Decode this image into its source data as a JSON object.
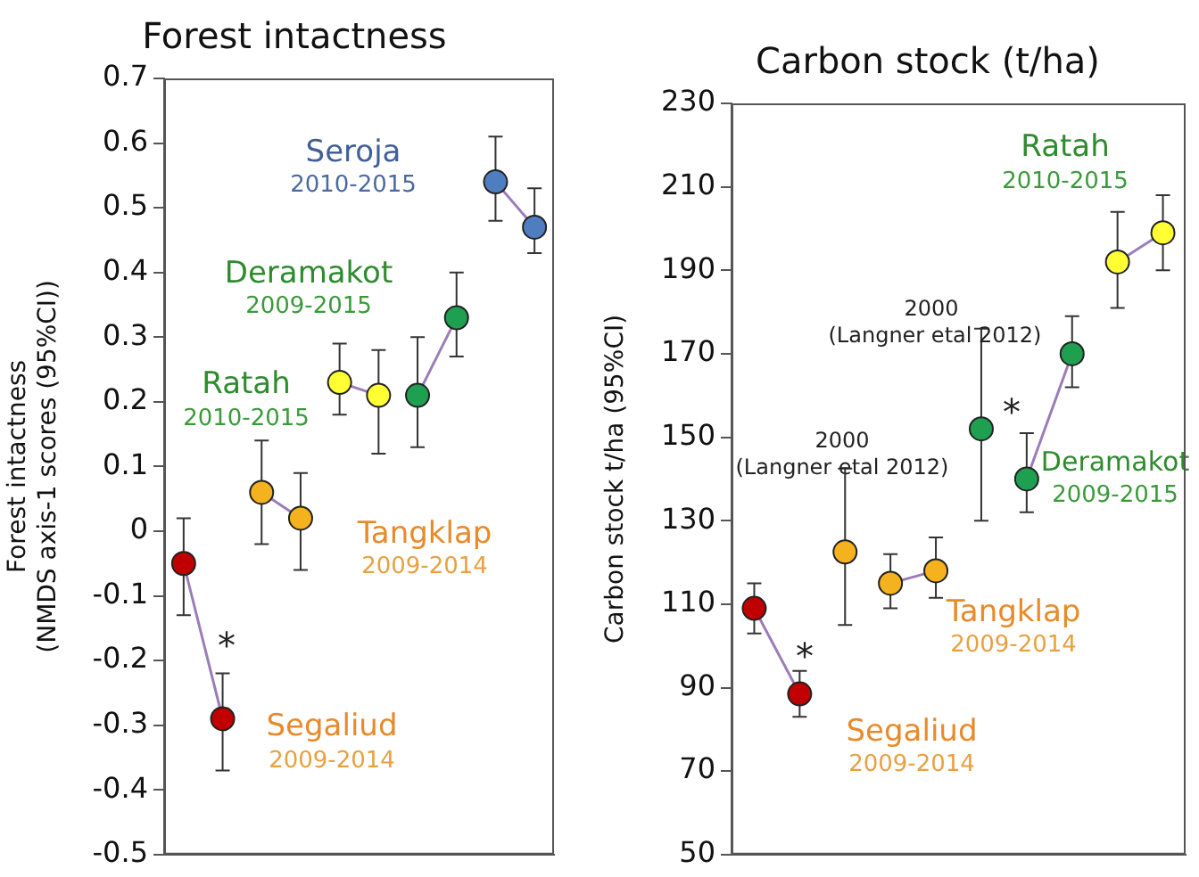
{
  "chart_data": [
    {
      "type": "line",
      "title": "Forest intactness",
      "ylabel": "Forest intactness\n(NMDS axis-1 scores (95%CI))",
      "categories": [
        null,
        null,
        null,
        null,
        null,
        null,
        null,
        null,
        null,
        null
      ],
      "ylim": [
        -0.5,
        0.7
      ],
      "yticks": [
        -0.5,
        -0.4,
        -0.3,
        -0.2,
        -0.1,
        0,
        0.1,
        0.2,
        0.3,
        0.4,
        0.5,
        0.6,
        0.7
      ],
      "grid": false,
      "legend": false,
      "marker": "circle",
      "tick_labels": "y",
      "series": [
        {
          "color": "#9c7cb8",
          "colors": [
            "#c00000",
            "#c00000",
            null,
            null,
            null,
            null,
            null,
            null,
            null,
            null
          ],
          "values": [
            -0.05,
            -0.29,
            null,
            null,
            null,
            null,
            null,
            null,
            null,
            null
          ],
          "errors": [
            [
              -0.13,
              0.02
            ],
            [
              -0.37,
              -0.22
            ],
            null,
            null,
            null,
            null,
            null,
            null,
            null,
            null
          ]
        },
        {
          "color": "#9c7cb8",
          "colors": [
            null,
            null,
            "#f5b21f",
            "#f5b21f",
            null,
            null,
            null,
            null,
            null,
            null
          ],
          "values": [
            null,
            null,
            0.06,
            0.02,
            null,
            null,
            null,
            null,
            null,
            null
          ],
          "errors": [
            null,
            null,
            [
              -0.02,
              0.14
            ],
            [
              -0.06,
              0.09
            ],
            null,
            null,
            null,
            null,
            null,
            null
          ]
        },
        {
          "color": "#9c7cb8",
          "colors": [
            null,
            null,
            null,
            null,
            "#ffff33",
            "#ffff33",
            null,
            null,
            null,
            null
          ],
          "values": [
            null,
            null,
            null,
            null,
            0.23,
            0.21,
            null,
            null,
            null,
            null
          ],
          "errors": [
            null,
            null,
            null,
            null,
            [
              0.18,
              0.29
            ],
            [
              0.12,
              0.28
            ],
            null,
            null,
            null,
            null
          ]
        },
        {
          "color": "#9c7cb8",
          "colors": [
            null,
            null,
            null,
            null,
            null,
            null,
            "#1fa050",
            "#1fa050",
            null,
            null
          ],
          "values": [
            null,
            null,
            null,
            null,
            null,
            null,
            0.21,
            0.33,
            null,
            null
          ],
          "errors": [
            null,
            null,
            null,
            null,
            null,
            null,
            [
              0.13,
              0.3
            ],
            [
              0.27,
              0.4
            ],
            null,
            null
          ]
        },
        {
          "color": "#9c7cb8",
          "colors": [
            null,
            null,
            null,
            null,
            null,
            null,
            null,
            null,
            "#4f7ec0",
            "#4f7ec0"
          ],
          "values": [
            null,
            null,
            null,
            null,
            null,
            null,
            null,
            null,
            0.54,
            0.47
          ],
          "errors": [
            null,
            null,
            null,
            null,
            null,
            null,
            null,
            null,
            [
              0.48,
              0.61
            ],
            [
              0.43,
              0.53
            ]
          ]
        }
      ],
      "annotations": [
        "Seroja",
        "2010-2015",
        "Deramakot",
        "2009-2015",
        "Ratah",
        "2010-2015",
        "Tangklap",
        "2009-2014",
        "Segaliud",
        "2009-2014",
        "*"
      ]
    },
    {
      "type": "line",
      "title": "Carbon stock (t/ha)",
      "ylabel": "Carbon stock t/ha (95%CI)",
      "categories": [
        null,
        null,
        null,
        null,
        null,
        null,
        null,
        null,
        null,
        null
      ],
      "ylim": [
        50,
        230
      ],
      "yticks": [
        50,
        70,
        90,
        110,
        130,
        150,
        170,
        190,
        210,
        230
      ],
      "grid": false,
      "legend": false,
      "marker": "circle",
      "tick_labels": "y",
      "series": [
        {
          "color": "#9c7cb8",
          "colors": [
            "#c00000",
            "#c00000",
            null,
            null,
            null,
            null,
            null,
            null,
            null,
            null
          ],
          "values": [
            109,
            88.5,
            null,
            null,
            null,
            null,
            null,
            null,
            null,
            null
          ],
          "errors": [
            [
              103,
              115
            ],
            [
              83,
              94
            ],
            null,
            null,
            null,
            null,
            null,
            null,
            null,
            null
          ]
        },
        {
          "color": "#f5b21f",
          "colors": [
            null,
            null,
            "#f5b21f",
            null,
            null,
            null,
            null,
            null,
            null,
            null
          ],
          "values": [
            null,
            null,
            122.5,
            null,
            null,
            null,
            null,
            null,
            null,
            null
          ],
          "errors": [
            null,
            null,
            [
              105,
              142.5
            ],
            null,
            null,
            null,
            null,
            null,
            null,
            null
          ]
        },
        {
          "color": "#9c7cb8",
          "colors": [
            null,
            null,
            null,
            "#f5b21f",
            "#f5b21f",
            null,
            null,
            null,
            null,
            null
          ],
          "values": [
            null,
            null,
            null,
            115,
            118,
            null,
            null,
            null,
            null,
            null
          ],
          "errors": [
            null,
            null,
            null,
            [
              109,
              122
            ],
            [
              111.5,
              126
            ],
            null,
            null,
            null,
            null,
            null
          ]
        },
        {
          "color": "#1fa050",
          "colors": [
            null,
            null,
            null,
            null,
            null,
            "#1fa050",
            null,
            null,
            null,
            null
          ],
          "values": [
            null,
            null,
            null,
            null,
            null,
            152,
            null,
            null,
            null,
            null
          ],
          "errors": [
            null,
            null,
            null,
            null,
            null,
            [
              130,
              176
            ],
            null,
            null,
            null,
            null
          ]
        },
        {
          "color": "#9c7cb8",
          "colors": [
            null,
            null,
            null,
            null,
            null,
            null,
            "#1fa050",
            "#1fa050",
            null,
            null
          ],
          "values": [
            null,
            null,
            null,
            null,
            null,
            null,
            140,
            170,
            null,
            null
          ],
          "errors": [
            null,
            null,
            null,
            null,
            null,
            null,
            [
              132,
              151
            ],
            [
              162,
              179
            ],
            null,
            null
          ]
        },
        {
          "color": "#9c7cb8",
          "colors": [
            null,
            null,
            null,
            null,
            null,
            null,
            null,
            null,
            "#ffff33",
            "#ffff33"
          ],
          "values": [
            null,
            null,
            null,
            null,
            null,
            null,
            null,
            null,
            192,
            199
          ],
          "errors": [
            null,
            null,
            null,
            null,
            null,
            null,
            null,
            null,
            [
              181,
              204
            ],
            [
              190,
              208
            ]
          ]
        }
      ],
      "annotations": [
        "Ratah",
        "2010-2015",
        "2000",
        "(Langner etal 2012)",
        "2000",
        "(Langner etal 2012)",
        "*",
        "*",
        "Deramakot",
        "2009-2015",
        "Tangklap",
        "2009-2014",
        "Segaliud",
        "2009-2014"
      ]
    }
  ]
}
